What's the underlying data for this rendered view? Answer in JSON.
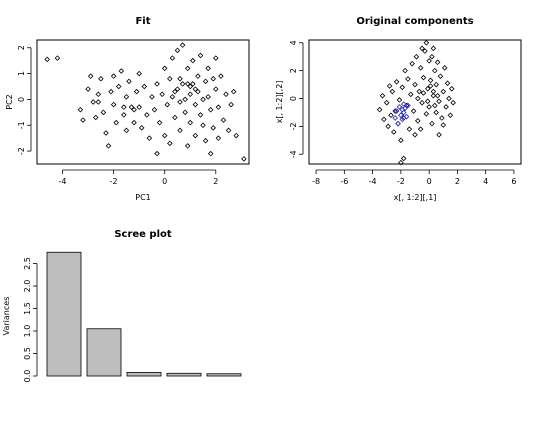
{
  "chart_data": [
    {
      "type": "scatter",
      "title": "Fit",
      "xlabel": "PC1",
      "ylabel": "PC2",
      "xlim": [
        -5,
        3.3
      ],
      "ylim": [
        -2.5,
        2.3
      ],
      "xticks": [
        -4,
        -2,
        0,
        2
      ],
      "yticks": [
        -2,
        -1,
        0,
        1,
        2
      ],
      "marker": "open-diamond",
      "points": [
        [
          -4.6,
          1.55
        ],
        [
          -4.2,
          1.6
        ],
        [
          -3.3,
          -0.4
        ],
        [
          -3.2,
          -0.8
        ],
        [
          -3.0,
          0.4
        ],
        [
          -2.9,
          0.9
        ],
        [
          -2.8,
          -0.1
        ],
        [
          -2.7,
          -0.7
        ],
        [
          -2.6,
          0.2
        ],
        [
          -2.5,
          0.8
        ],
        [
          -2.4,
          -0.5
        ],
        [
          -2.3,
          -1.3
        ],
        [
          -2.2,
          -1.8
        ],
        [
          -2.1,
          0.3
        ],
        [
          -2.0,
          0.9
        ],
        [
          -2.0,
          -0.2
        ],
        [
          -1.9,
          -0.9
        ],
        [
          -1.8,
          0.5
        ],
        [
          -1.7,
          1.1
        ],
        [
          -1.6,
          -0.6
        ],
        [
          -1.5,
          0.1
        ],
        [
          -1.5,
          -1.2
        ],
        [
          -1.4,
          0.7
        ],
        [
          -1.3,
          -0.3
        ],
        [
          -1.2,
          -0.9
        ],
        [
          -1.1,
          0.3
        ],
        [
          -1.0,
          1.0
        ],
        [
          -1.0,
          -0.3
        ],
        [
          -0.9,
          -1.1
        ],
        [
          -0.8,
          0.5
        ],
        [
          -0.7,
          -0.6
        ],
        [
          -0.6,
          -1.5
        ],
        [
          -0.5,
          0.1
        ],
        [
          -0.4,
          -0.4
        ],
        [
          -0.3,
          0.6
        ],
        [
          -0.3,
          -2.1
        ],
        [
          -0.2,
          -0.9
        ],
        [
          -0.1,
          0.2
        ],
        [
          0.0,
          1.2
        ],
        [
          0.0,
          -1.4
        ],
        [
          0.1,
          -0.2
        ],
        [
          0.2,
          0.8
        ],
        [
          0.2,
          -1.7
        ],
        [
          0.3,
          1.6
        ],
        [
          0.4,
          0.3
        ],
        [
          0.4,
          -0.7
        ],
        [
          0.5,
          1.9
        ],
        [
          0.6,
          -0.1
        ],
        [
          0.6,
          -1.2
        ],
        [
          0.7,
          0.6
        ],
        [
          0.7,
          2.1
        ],
        [
          0.8,
          -0.5
        ],
        [
          0.9,
          1.2
        ],
        [
          0.9,
          -1.8
        ],
        [
          1.0,
          0.2
        ],
        [
          1.0,
          -0.9
        ],
        [
          1.1,
          1.5
        ],
        [
          1.1,
          0.6
        ],
        [
          1.2,
          -0.2
        ],
        [
          1.2,
          -1.4
        ],
        [
          1.3,
          0.9
        ],
        [
          1.3,
          0.3
        ],
        [
          1.4,
          -0.6
        ],
        [
          1.4,
          1.7
        ],
        [
          1.5,
          0.0
        ],
        [
          1.5,
          -1.0
        ],
        [
          1.6,
          0.7
        ],
        [
          1.6,
          -1.6
        ],
        [
          1.7,
          1.2
        ],
        [
          1.7,
          0.1
        ],
        [
          1.8,
          -0.4
        ],
        [
          1.8,
          -2.1
        ],
        [
          1.9,
          0.8
        ],
        [
          1.9,
          -1.1
        ],
        [
          2.0,
          0.4
        ],
        [
          2.0,
          1.6
        ],
        [
          2.1,
          -0.3
        ],
        [
          2.1,
          -1.5
        ],
        [
          2.2,
          0.9
        ],
        [
          2.3,
          -0.8
        ],
        [
          2.4,
          0.2
        ],
        [
          2.5,
          -1.2
        ],
        [
          2.6,
          -0.2
        ],
        [
          2.7,
          0.3
        ],
        [
          2.8,
          -1.4
        ],
        [
          3.1,
          -2.3
        ],
        [
          0.3,
          0.1
        ],
        [
          0.5,
          0.4
        ],
        [
          0.8,
          0.0
        ],
        [
          1.0,
          0.5
        ],
        [
          1.2,
          0.4
        ],
        [
          0.6,
          0.8
        ],
        [
          0.9,
          0.6
        ],
        [
          -1.2,
          -0.4
        ],
        [
          -1.6,
          -0.3
        ],
        [
          -2.6,
          -0.1
        ]
      ]
    },
    {
      "type": "scatter",
      "title": "Original components",
      "xlabel": "x[, 1:2][,1]",
      "ylabel": "x[, 1:2][,2]",
      "xlim": [
        -8.5,
        6.5
      ],
      "ylim": [
        -4.7,
        4.2
      ],
      "xticks": [
        -8,
        -6,
        -4,
        -2,
        0,
        2,
        4,
        6
      ],
      "yticks": [
        -4,
        -2,
        0,
        2,
        4
      ],
      "marker": "open-diamond",
      "colors": {
        "main": "#000000",
        "group": "#3333cc"
      },
      "points": [
        [
          -3.5,
          -0.8
        ],
        [
          -3.2,
          -1.5
        ],
        [
          -3.0,
          -0.3
        ],
        [
          -2.9,
          -2.0
        ],
        [
          -2.7,
          -1.2
        ],
        [
          -2.6,
          0.5
        ],
        [
          -2.5,
          -2.4
        ],
        [
          -2.4,
          -0.9
        ],
        [
          -2.3,
          1.2
        ],
        [
          -2.2,
          -1.8
        ],
        [
          -2.1,
          -0.1
        ],
        [
          -2.0,
          -3.0
        ],
        [
          -1.9,
          0.8
        ],
        [
          -1.8,
          -1.4
        ],
        [
          -1.7,
          2.0
        ],
        [
          -1.6,
          -0.5
        ],
        [
          -1.5,
          1.4
        ],
        [
          -1.4,
          -2.2
        ],
        [
          -1.3,
          0.3
        ],
        [
          -1.2,
          2.5
        ],
        [
          -1.1,
          -0.9
        ],
        [
          -1.0,
          1.0
        ],
        [
          -0.9,
          3.0
        ],
        [
          -0.8,
          -1.6
        ],
        [
          -0.7,
          0.5
        ],
        [
          -0.6,
          2.2
        ],
        [
          -0.5,
          -0.3
        ],
        [
          -0.4,
          1.5
        ],
        [
          -0.3,
          3.4
        ],
        [
          -0.2,
          -1.1
        ],
        [
          -0.1,
          0.7
        ],
        [
          0.0,
          2.7
        ],
        [
          0.0,
          -0.6
        ],
        [
          0.1,
          1.3
        ],
        [
          0.2,
          3.0
        ],
        [
          0.2,
          -1.8
        ],
        [
          0.3,
          0.2
        ],
        [
          0.4,
          2.0
        ],
        [
          0.5,
          -1.0
        ],
        [
          0.5,
          1.0
        ],
        [
          0.6,
          2.6
        ],
        [
          0.7,
          -0.2
        ],
        [
          0.8,
          1.6
        ],
        [
          0.9,
          -1.4
        ],
        [
          1.0,
          0.5
        ],
        [
          1.1,
          2.2
        ],
        [
          1.2,
          -0.6
        ],
        [
          1.3,
          1.1
        ],
        [
          1.4,
          0.0
        ],
        [
          1.5,
          -1.2
        ],
        [
          1.6,
          0.7
        ],
        [
          1.7,
          -0.3
        ],
        [
          -0.2,
          4.0
        ],
        [
          -1.8,
          -4.3
        ],
        [
          -2.0,
          -4.6
        ],
        [
          -0.5,
          3.6
        ],
        [
          0.3,
          3.6
        ],
        [
          -0.8,
          0.0
        ],
        [
          -0.4,
          0.4
        ],
        [
          0.1,
          0.9
        ],
        [
          0.3,
          0.5
        ],
        [
          0.6,
          0.2
        ],
        [
          -0.1,
          -0.2
        ],
        [
          0.4,
          -0.5
        ],
        [
          -1.0,
          -2.6
        ],
        [
          -0.6,
          -2.2
        ],
        [
          0.7,
          -2.6
        ],
        [
          1.0,
          -1.9
        ],
        [
          -3.3,
          0.2
        ],
        [
          -2.8,
          0.9
        ]
      ],
      "group_points": [
        [
          -2.4,
          -1.4
        ],
        [
          -2.1,
          -0.6
        ],
        [
          -2.0,
          -1.2
        ],
        [
          -1.9,
          -0.8
        ],
        [
          -1.8,
          -1.0
        ],
        [
          -1.7,
          -0.7
        ],
        [
          -1.6,
          -1.3
        ],
        [
          -2.2,
          -1.8
        ],
        [
          -1.5,
          -0.5
        ],
        [
          -2.3,
          -0.9
        ],
        [
          -1.9,
          -1.5
        ],
        [
          -1.8,
          -0.4
        ]
      ]
    },
    {
      "type": "bar",
      "title": "Scree plot",
      "ylabel": "Variances",
      "values": [
        2.75,
        1.05,
        0.08,
        0.06,
        0.05
      ],
      "ylim": [
        0,
        2.8
      ],
      "yticks": [
        "0.0",
        "0.5",
        "1.0",
        "1.5",
        "2.0",
        "2.5"
      ],
      "colors": {
        "bar": "#bebebe"
      }
    }
  ]
}
